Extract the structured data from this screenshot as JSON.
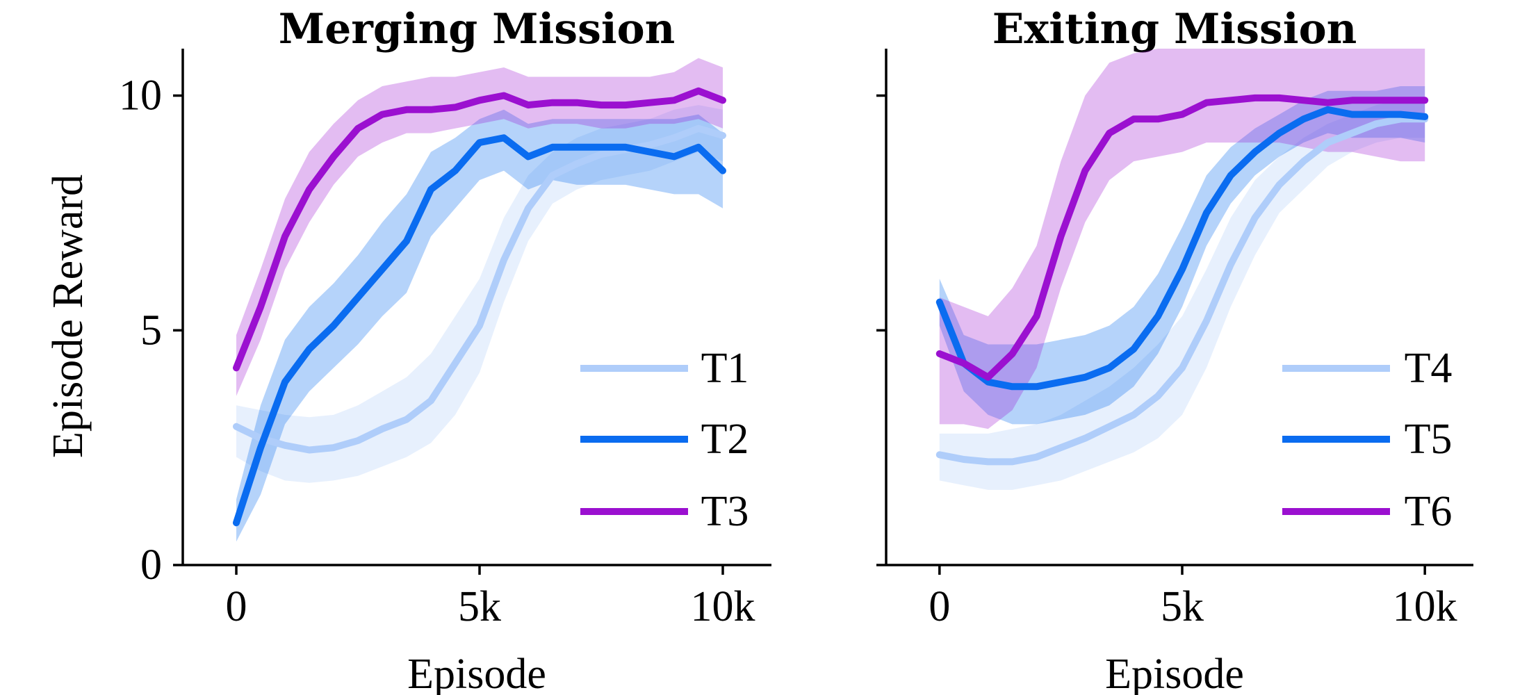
{
  "chart_data": [
    {
      "type": "line",
      "title": "Merging Mission",
      "xlabel": "Episode",
      "ylabel": "Episode Reward",
      "xlim": [
        -1100,
        11000
      ],
      "ylim": [
        0,
        11
      ],
      "xticks": [
        0,
        5000,
        10000
      ],
      "xtick_labels": [
        "0",
        "5k",
        "10k"
      ],
      "yticks": [
        0,
        5,
        10
      ],
      "ytick_labels": [
        "0",
        "5",
        "10"
      ],
      "legend_position": "lower-right",
      "series": [
        {
          "name": "T1",
          "color": "#afcdfa",
          "band_opacity": 0.3,
          "x": [
            0,
            500,
            1000,
            1500,
            2000,
            2500,
            3000,
            3500,
            4000,
            4500,
            5000,
            5500,
            6000,
            6500,
            7000,
            7500,
            8000,
            8500,
            9000,
            9500,
            10000
          ],
          "y": [
            2.95,
            2.7,
            2.55,
            2.45,
            2.5,
            2.65,
            2.9,
            3.1,
            3.5,
            4.3,
            5.1,
            6.5,
            7.6,
            8.3,
            8.55,
            8.75,
            8.85,
            8.95,
            9.1,
            9.3,
            9.15
          ],
          "lower": [
            2.3,
            2.0,
            1.8,
            1.75,
            1.8,
            1.9,
            2.1,
            2.3,
            2.6,
            3.2,
            4.1,
            5.6,
            6.9,
            7.7,
            8.0,
            8.2,
            8.3,
            8.4,
            8.6,
            8.8,
            8.6
          ],
          "upper": [
            3.4,
            3.3,
            3.2,
            3.15,
            3.2,
            3.4,
            3.7,
            4.0,
            4.5,
            5.3,
            6.1,
            7.4,
            8.3,
            8.8,
            9.1,
            9.3,
            9.4,
            9.5,
            9.7,
            9.8,
            9.7
          ]
        },
        {
          "name": "T2",
          "color": "#0a6cf0",
          "band_opacity": 0.3,
          "x": [
            0,
            500,
            1000,
            1500,
            2000,
            2500,
            3000,
            3500,
            4000,
            4500,
            5000,
            5500,
            6000,
            6500,
            7000,
            7500,
            8000,
            8500,
            9000,
            9500,
            10000
          ],
          "y": [
            0.9,
            2.5,
            3.9,
            4.6,
            5.1,
            5.7,
            6.3,
            6.9,
            8.0,
            8.4,
            9.0,
            9.1,
            8.7,
            8.9,
            8.9,
            8.9,
            8.9,
            8.8,
            8.7,
            8.9,
            8.4
          ],
          "lower": [
            0.5,
            1.5,
            3.0,
            3.7,
            4.2,
            4.7,
            5.3,
            5.8,
            7.0,
            7.6,
            8.2,
            8.4,
            8.0,
            8.2,
            8.1,
            8.1,
            8.1,
            8.0,
            7.9,
            7.9,
            7.6
          ],
          "upper": [
            1.4,
            3.4,
            4.8,
            5.5,
            6.0,
            6.6,
            7.3,
            7.9,
            8.8,
            9.1,
            9.5,
            9.7,
            9.4,
            9.5,
            9.5,
            9.5,
            9.5,
            9.5,
            9.5,
            9.6,
            9.2
          ]
        },
        {
          "name": "T3",
          "color": "#9b10d0",
          "band_opacity": 0.28,
          "x": [
            0,
            500,
            1000,
            1500,
            2000,
            2500,
            3000,
            3500,
            4000,
            4500,
            5000,
            5500,
            6000,
            6500,
            7000,
            7500,
            8000,
            8500,
            9000,
            9500,
            10000
          ],
          "y": [
            4.2,
            5.5,
            7.0,
            8.0,
            8.7,
            9.3,
            9.6,
            9.7,
            9.7,
            9.75,
            9.9,
            10.0,
            9.8,
            9.85,
            9.85,
            9.8,
            9.8,
            9.85,
            9.9,
            10.1,
            9.9
          ],
          "lower": [
            3.6,
            4.8,
            6.3,
            7.3,
            8.1,
            8.7,
            9.0,
            9.2,
            9.2,
            9.3,
            9.4,
            9.5,
            9.3,
            9.4,
            9.4,
            9.3,
            9.3,
            9.4,
            9.4,
            9.5,
            9.3
          ],
          "upper": [
            4.9,
            6.3,
            7.8,
            8.8,
            9.4,
            9.9,
            10.2,
            10.3,
            10.4,
            10.4,
            10.5,
            10.6,
            10.4,
            10.4,
            10.4,
            10.4,
            10.4,
            10.4,
            10.5,
            10.8,
            10.6
          ]
        }
      ]
    },
    {
      "type": "line",
      "title": "Exiting Mission",
      "xlabel": "Episode",
      "ylabel": "",
      "xlim": [
        -1100,
        11000
      ],
      "ylim": [
        0,
        11
      ],
      "xticks": [
        0,
        5000,
        10000
      ],
      "xtick_labels": [
        "0",
        "5k",
        "10k"
      ],
      "yticks": [
        0,
        5,
        10
      ],
      "ytick_labels": [],
      "legend_position": "lower-right",
      "series": [
        {
          "name": "T4",
          "color": "#afcdfa",
          "band_opacity": 0.3,
          "x": [
            0,
            500,
            1000,
            1500,
            2000,
            2500,
            3000,
            3500,
            4000,
            4500,
            5000,
            5500,
            6000,
            6500,
            7000,
            7500,
            8000,
            8500,
            9000,
            9500,
            10000
          ],
          "y": [
            2.35,
            2.25,
            2.2,
            2.2,
            2.3,
            2.5,
            2.7,
            2.95,
            3.2,
            3.6,
            4.2,
            5.2,
            6.4,
            7.4,
            8.1,
            8.6,
            9.0,
            9.2,
            9.4,
            9.5,
            9.5
          ],
          "lower": [
            1.8,
            1.7,
            1.6,
            1.6,
            1.7,
            1.8,
            2.0,
            2.2,
            2.4,
            2.7,
            3.2,
            4.2,
            5.5,
            6.6,
            7.5,
            8.0,
            8.5,
            8.8,
            9.0,
            9.1,
            9.1
          ],
          "upper": [
            2.8,
            2.8,
            2.8,
            2.9,
            3.0,
            3.2,
            3.5,
            3.8,
            4.2,
            4.7,
            5.3,
            6.3,
            7.4,
            8.2,
            8.7,
            9.1,
            9.4,
            9.6,
            9.8,
            9.9,
            9.9
          ]
        },
        {
          "name": "T5",
          "color": "#0a6cf0",
          "band_opacity": 0.3,
          "x": [
            0,
            500,
            1000,
            1500,
            2000,
            2500,
            3000,
            3500,
            4000,
            4500,
            5000,
            5500,
            6000,
            6500,
            7000,
            7500,
            8000,
            8500,
            9000,
            9500,
            10000
          ],
          "y": [
            5.6,
            4.3,
            3.9,
            3.8,
            3.8,
            3.9,
            4.0,
            4.2,
            4.6,
            5.3,
            6.3,
            7.5,
            8.3,
            8.8,
            9.2,
            9.5,
            9.7,
            9.6,
            9.6,
            9.6,
            9.55
          ],
          "lower": [
            5.1,
            3.7,
            3.2,
            3.0,
            3.0,
            3.1,
            3.2,
            3.4,
            3.8,
            4.5,
            5.5,
            6.8,
            7.7,
            8.3,
            8.7,
            9.0,
            9.2,
            9.1,
            9.1,
            9.1,
            9.0
          ],
          "upper": [
            6.1,
            4.9,
            4.7,
            4.7,
            4.7,
            4.8,
            4.9,
            5.1,
            5.5,
            6.2,
            7.2,
            8.3,
            8.9,
            9.3,
            9.6,
            9.9,
            10.1,
            10.1,
            10.1,
            10.2,
            10.2
          ]
        },
        {
          "name": "T6",
          "color": "#9b10d0",
          "band_opacity": 0.28,
          "x": [
            0,
            500,
            1000,
            1500,
            2000,
            2500,
            3000,
            3500,
            4000,
            4500,
            5000,
            5500,
            6000,
            6500,
            7000,
            7500,
            8000,
            8500,
            9000,
            9500,
            10000
          ],
          "y": [
            4.5,
            4.3,
            4.0,
            4.5,
            5.3,
            7.0,
            8.4,
            9.2,
            9.5,
            9.5,
            9.6,
            9.85,
            9.9,
            9.95,
            9.95,
            9.9,
            9.85,
            9.9,
            9.9,
            9.9,
            9.9
          ],
          "lower": [
            3.0,
            3.0,
            2.9,
            3.3,
            4.2,
            5.9,
            7.3,
            8.2,
            8.6,
            8.7,
            8.8,
            9.0,
            9.0,
            9.0,
            9.0,
            8.9,
            8.8,
            8.8,
            8.7,
            8.6,
            8.6
          ],
          "upper": [
            5.7,
            5.5,
            5.3,
            5.9,
            6.8,
            8.6,
            10.0,
            10.7,
            10.9,
            11.0,
            11.0,
            11.0,
            11.0,
            11.0,
            11.0,
            11.0,
            11.0,
            11.0,
            11.0,
            11.0,
            11.0
          ]
        }
      ]
    }
  ]
}
